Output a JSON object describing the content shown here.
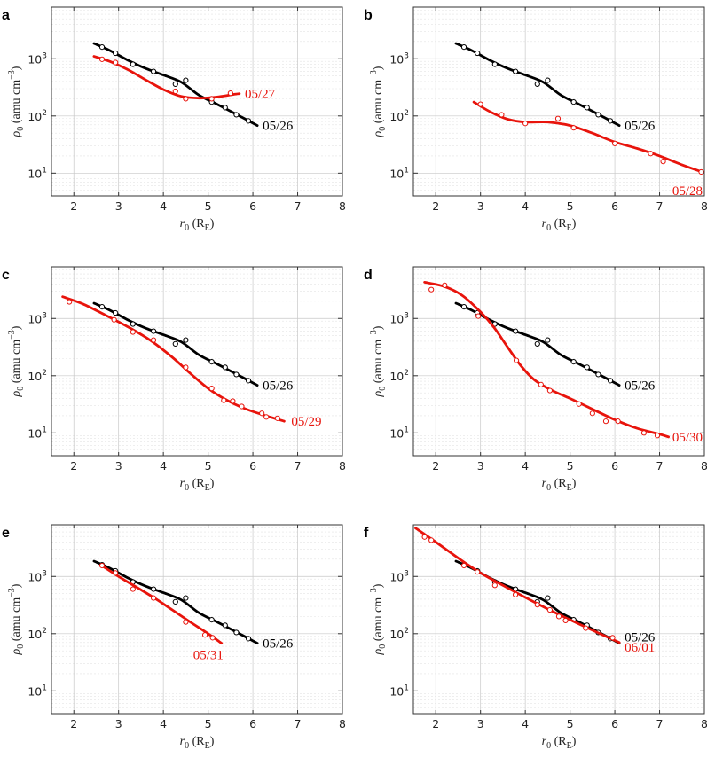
{
  "figure": {
    "x_label_sym": "r",
    "x_label_sub": "0",
    "x_label_unit": " (R",
    "x_label_unit_sub": "E",
    "x_label_close": ")",
    "y_label_sym": "ρ",
    "y_label_sub": "0",
    "y_label_unit": " (amu cm",
    "y_label_unit_sup": "−3",
    "y_label_close": ")",
    "x_ticks": [
      "2",
      "3",
      "4",
      "5",
      "6",
      "7",
      "8"
    ],
    "y_tick_base": "10",
    "y_tick_exps": [
      "1",
      "2",
      "3"
    ]
  },
  "colors": {
    "reference": "#000000",
    "comparison": "#e8140c"
  },
  "chart_data": [
    {
      "type": "line",
      "panel": "a",
      "xlim": [
        1.5,
        8
      ],
      "ylim": [
        4,
        8000
      ],
      "yscale": "log",
      "series": [
        {
          "name": "05/26",
          "role": "reference",
          "curve_x": [
            2.45,
            2.8,
            3.2,
            3.6,
            4.0,
            4.4,
            4.8,
            5.2,
            5.6,
            6.1
          ],
          "curve_y": [
            1850,
            1400,
            950,
            680,
            520,
            390,
            230,
            160,
            110,
            68
          ],
          "points_x": [
            2.63,
            2.93,
            3.32,
            3.78,
            4.27,
            4.5,
            5.08,
            5.38,
            5.63,
            5.9
          ],
          "points_y": [
            1600,
            1250,
            800,
            600,
            360,
            420,
            175,
            140,
            105,
            82
          ]
        },
        {
          "name": "05/27",
          "role": "comparison",
          "curve_x": [
            2.45,
            2.8,
            3.2,
            3.6,
            4.0,
            4.4,
            4.8,
            5.2,
            5.6,
            5.7
          ],
          "curve_y": [
            1100,
            900,
            650,
            430,
            290,
            220,
            205,
            215,
            240,
            245
          ],
          "points_x": [
            2.63,
            2.93,
            4.27,
            4.5,
            5.08,
            5.5
          ],
          "points_y": [
            980,
            860,
            270,
            200,
            200,
            250
          ]
        }
      ]
    },
    {
      "type": "line",
      "panel": "b",
      "xlim": [
        1.5,
        8
      ],
      "ylim": [
        4,
        8000
      ],
      "yscale": "log",
      "series": [
        {
          "name": "05/26",
          "role": "reference",
          "curve_x": [
            2.45,
            2.8,
            3.2,
            3.6,
            4.0,
            4.4,
            4.8,
            5.2,
            5.6,
            6.1
          ],
          "curve_y": [
            1850,
            1400,
            950,
            680,
            520,
            390,
            230,
            160,
            110,
            68
          ],
          "points_x": [
            2.63,
            2.93,
            3.32,
            3.78,
            4.27,
            4.5,
            5.08,
            5.38,
            5.63,
            5.9
          ],
          "points_y": [
            1600,
            1250,
            800,
            600,
            360,
            420,
            175,
            140,
            105,
            82
          ]
        },
        {
          "name": "05/28",
          "role": "comparison",
          "curve_x": [
            2.85,
            3.2,
            3.6,
            4.0,
            4.5,
            5.0,
            5.5,
            6.0,
            6.5,
            7.0,
            7.5,
            7.95
          ],
          "curve_y": [
            175,
            120,
            88,
            78,
            78,
            68,
            50,
            35,
            27,
            20,
            14,
            10.5
          ],
          "points_x": [
            3.0,
            3.47,
            4.0,
            4.73,
            5.08,
            6.0,
            6.8,
            7.08,
            7.93
          ],
          "points_y": [
            160,
            105,
            74,
            90,
            62,
            33,
            22,
            16,
            10.5
          ]
        }
      ]
    },
    {
      "type": "line",
      "panel": "c",
      "xlim": [
        1.5,
        8
      ],
      "ylim": [
        4,
        8000
      ],
      "yscale": "log",
      "series": [
        {
          "name": "05/26",
          "role": "reference",
          "curve_x": [
            2.45,
            2.8,
            3.2,
            3.6,
            4.0,
            4.4,
            4.8,
            5.2,
            5.6,
            6.1
          ],
          "curve_y": [
            1850,
            1400,
            950,
            680,
            520,
            390,
            230,
            160,
            110,
            68
          ],
          "points_x": [
            2.63,
            2.93,
            3.32,
            3.78,
            4.27,
            4.5,
            5.08,
            5.38,
            5.63,
            5.9
          ],
          "points_y": [
            1600,
            1250,
            800,
            600,
            360,
            420,
            175,
            140,
            105,
            82
          ]
        },
        {
          "name": "05/29",
          "role": "comparison",
          "curve_x": [
            1.75,
            2.2,
            2.7,
            3.2,
            3.7,
            4.2,
            4.6,
            5.0,
            5.4,
            5.8,
            6.2,
            6.7
          ],
          "curve_y": [
            2400,
            1800,
            1150,
            720,
            420,
            210,
            110,
            60,
            38,
            27,
            21,
            16
          ],
          "points_x": [
            1.9,
            2.9,
            3.32,
            3.78,
            4.5,
            5.08,
            5.35,
            5.55,
            5.75,
            6.2,
            6.3,
            6.55
          ],
          "points_y": [
            1950,
            950,
            580,
            420,
            140,
            60,
            37,
            36,
            29,
            22,
            19,
            18
          ]
        }
      ]
    },
    {
      "type": "line",
      "panel": "d",
      "xlim": [
        1.5,
        8
      ],
      "ylim": [
        4,
        8000
      ],
      "yscale": "log",
      "series": [
        {
          "name": "05/26",
          "role": "reference",
          "curve_x": [
            2.45,
            2.8,
            3.2,
            3.6,
            4.0,
            4.4,
            4.8,
            5.2,
            5.6,
            6.1
          ],
          "curve_y": [
            1850,
            1400,
            950,
            680,
            520,
            390,
            230,
            160,
            110,
            68
          ],
          "points_x": [
            2.63,
            2.93,
            3.32,
            3.78,
            4.27,
            4.5,
            5.08,
            5.38,
            5.63,
            5.9
          ],
          "points_y": [
            1600,
            1250,
            800,
            600,
            360,
            420,
            175,
            140,
            105,
            82
          ]
        },
        {
          "name": "05/30",
          "role": "comparison",
          "curve_x": [
            1.75,
            2.2,
            2.6,
            3.0,
            3.3,
            3.6,
            3.9,
            4.2,
            4.6,
            5.0,
            5.5,
            6.0,
            6.5,
            7.0,
            7.2
          ],
          "curve_y": [
            4300,
            3600,
            2500,
            1300,
            700,
            320,
            150,
            85,
            55,
            40,
            26,
            17,
            12,
            9.5,
            8.5
          ],
          "points_x": [
            1.9,
            2.2,
            2.95,
            3.8,
            4.35,
            4.55,
            5.2,
            5.5,
            5.8,
            6.07,
            6.65,
            6.95
          ],
          "points_y": [
            3200,
            3800,
            1100,
            185,
            70,
            55,
            32,
            22,
            16,
            16,
            10,
            9
          ]
        }
      ]
    },
    {
      "type": "line",
      "panel": "e",
      "xlim": [
        1.5,
        8
      ],
      "ylim": [
        4,
        8000
      ],
      "yscale": "log",
      "series": [
        {
          "name": "05/26",
          "role": "reference",
          "curve_x": [
            2.45,
            2.8,
            3.2,
            3.6,
            4.0,
            4.4,
            4.8,
            5.2,
            5.6,
            6.1
          ],
          "curve_y": [
            1850,
            1400,
            950,
            680,
            520,
            390,
            230,
            160,
            110,
            68
          ],
          "points_x": [
            2.63,
            2.93,
            3.32,
            3.78,
            4.27,
            4.5,
            5.08,
            5.38,
            5.63,
            5.9
          ],
          "points_y": [
            1600,
            1250,
            800,
            600,
            360,
            420,
            175,
            140,
            105,
            82
          ]
        },
        {
          "name": "05/31",
          "role": "comparison",
          "curve_x": [
            2.65,
            3.0,
            3.4,
            3.8,
            4.2,
            4.6,
            5.0,
            5.3
          ],
          "curve_y": [
            1500,
            1000,
            650,
            420,
            260,
            160,
            100,
            68
          ],
          "points_x": [
            2.63,
            2.93,
            3.32,
            3.78,
            4.5,
            4.93,
            5.1
          ],
          "points_y": [
            1550,
            1150,
            600,
            420,
            160,
            95,
            85
          ]
        }
      ]
    },
    {
      "type": "line",
      "panel": "f",
      "xlim": [
        1.5,
        8
      ],
      "ylim": [
        4,
        8000
      ],
      "yscale": "log",
      "series": [
        {
          "name": "05/26",
          "role": "reference",
          "curve_x": [
            2.45,
            2.8,
            3.2,
            3.6,
            4.0,
            4.4,
            4.8,
            5.2,
            5.6,
            6.1
          ],
          "curve_y": [
            1850,
            1400,
            950,
            680,
            520,
            390,
            230,
            160,
            110,
            68
          ],
          "points_x": [
            2.63,
            2.93,
            3.32,
            3.78,
            4.27,
            4.5,
            5.08,
            5.38,
            5.63,
            5.9
          ],
          "points_y": [
            1600,
            1250,
            800,
            600,
            360,
            420,
            175,
            140,
            105,
            82
          ]
        },
        {
          "name": "06/01",
          "role": "comparison",
          "curve_x": [
            1.55,
            2.0,
            2.5,
            3.0,
            3.5,
            4.0,
            4.5,
            5.0,
            5.5,
            6.1
          ],
          "curve_y": [
            7000,
            4000,
            2100,
            1150,
            700,
            430,
            270,
            175,
            115,
            70
          ],
          "points_x": [
            1.75,
            1.9,
            2.63,
            2.93,
            3.32,
            3.78,
            4.27,
            4.55,
            4.75,
            4.9,
            5.35,
            5.95
          ],
          "points_y": [
            4900,
            4300,
            1550,
            1200,
            700,
            480,
            320,
            260,
            200,
            170,
            125,
            85
          ]
        }
      ]
    }
  ]
}
